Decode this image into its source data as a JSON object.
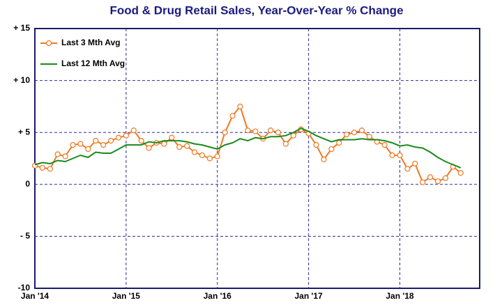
{
  "chart_data": {
    "type": "line",
    "title": "Food & Drug Retail Sales, Year-Over-Year % Change",
    "categories": [
      "Jan '14",
      null,
      null,
      null,
      null,
      null,
      null,
      null,
      null,
      null,
      null,
      null,
      "Jan '15",
      null,
      null,
      null,
      null,
      null,
      null,
      null,
      null,
      null,
      null,
      null,
      "Jan '16",
      null,
      null,
      null,
      null,
      null,
      null,
      null,
      null,
      null,
      null,
      null,
      "Jan '17",
      null,
      null,
      null,
      null,
      null,
      null,
      null,
      null,
      null,
      null,
      null,
      "Jan '18",
      null,
      null,
      null,
      null,
      null,
      null,
      null,
      null
    ],
    "series": [
      {
        "name": "Last 3 Mth Avg",
        "color": "#f07820",
        "marker": true,
        "values": [
          1.8,
          1.6,
          1.5,
          2.9,
          2.7,
          3.8,
          3.9,
          3.4,
          4.2,
          3.8,
          4.2,
          4.5,
          4.7,
          5.2,
          4.2,
          3.5,
          4.0,
          3.9,
          4.5,
          3.6,
          3.7,
          3.1,
          2.8,
          2.5,
          2.7,
          5.0,
          6.6,
          7.5,
          5.2,
          5.1,
          4.4,
          5.2,
          5.0,
          3.9,
          4.7,
          5.3,
          4.9,
          3.8,
          2.4,
          3.4,
          4.0,
          4.8,
          5.0,
          5.2,
          4.6,
          4.1,
          3.8,
          2.8,
          2.8,
          1.5,
          2.0,
          0.2,
          0.7,
          0.3,
          0.6,
          1.7,
          1.1
        ]
      },
      {
        "name": "Last 12 Mth Avg",
        "color": "#1a8a1a",
        "marker": false,
        "values": [
          1.9,
          2.1,
          2.0,
          2.3,
          2.2,
          2.5,
          2.8,
          2.6,
          3.1,
          3.0,
          3.0,
          3.4,
          3.8,
          3.8,
          3.8,
          4.1,
          4.0,
          4.2,
          4.2,
          4.2,
          4.1,
          3.9,
          3.8,
          3.6,
          3.4,
          3.8,
          4.0,
          4.4,
          4.2,
          4.5,
          4.4,
          4.6,
          4.6,
          4.7,
          5.0,
          5.4,
          5.1,
          4.7,
          4.4,
          4.1,
          4.3,
          4.3,
          4.3,
          4.4,
          4.3,
          4.3,
          4.2,
          4.0,
          3.7,
          3.8,
          3.6,
          3.5,
          3.1,
          2.6,
          2.2,
          1.9,
          1.6
        ]
      }
    ],
    "ylim": [
      -10,
      15
    ],
    "yticks": [
      {
        "value": 15,
        "label": "+ 15"
      },
      {
        "value": 10,
        "label": "+ 10"
      },
      {
        "value": 5,
        "label": "+ 5"
      },
      0,
      {
        "value": -5,
        "label": "- 5"
      },
      {
        "value": -10,
        "label": "-10"
      }
    ],
    "grid": true,
    "legend": "upper left"
  }
}
